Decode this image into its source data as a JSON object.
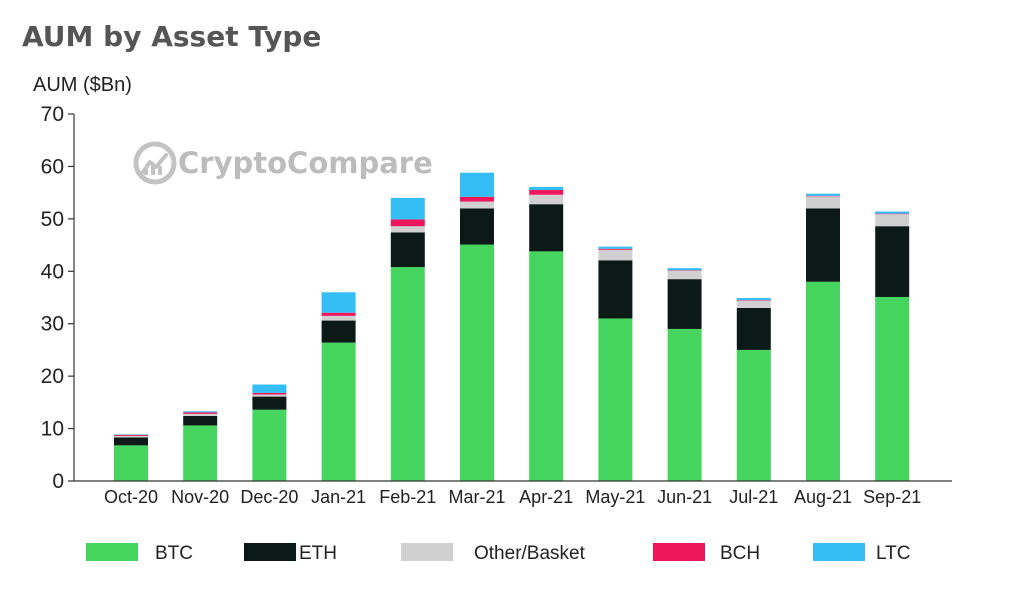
{
  "chart_data": {
    "type": "bar",
    "stacked": true,
    "title": "AUM by Asset Type",
    "xlabel": "",
    "ylabel": "AUM ($Bn)",
    "ylim": [
      0,
      70
    ],
    "yticks": [
      0,
      10,
      20,
      30,
      40,
      50,
      60,
      70
    ],
    "grid": false,
    "legend_position": "bottom",
    "watermark": "CryptoCompare",
    "categories": [
      "Oct-20",
      "Nov-20",
      "Dec-20",
      "Jan-21",
      "Feb-21",
      "Mar-21",
      "Apr-21",
      "May-21",
      "Jun-21",
      "Jul-21",
      "Aug-21",
      "Sep-21"
    ],
    "series": [
      {
        "name": "BTC",
        "color": "#45d45d",
        "values": [
          6.8,
          10.6,
          13.6,
          26.4,
          40.8,
          45.1,
          43.8,
          31.0,
          29.0,
          25.0,
          38.0,
          35.1
        ]
      },
      {
        "name": "ETH",
        "color": "#0c1a17",
        "values": [
          1.5,
          1.8,
          2.5,
          4.2,
          6.6,
          6.9,
          9.0,
          11.1,
          9.5,
          8.0,
          14.0,
          13.5
        ]
      },
      {
        "name": "Other/Basket",
        "color": "#d0d0d0",
        "values": [
          0.3,
          0.4,
          0.4,
          0.9,
          1.2,
          1.3,
          1.8,
          2.0,
          1.6,
          1.4,
          2.3,
          2.3
        ]
      },
      {
        "name": "BCH",
        "color": "#f0165c",
        "values": [
          0.2,
          0.3,
          0.3,
          0.6,
          1.3,
          0.9,
          0.9,
          0.2,
          0.1,
          0.1,
          0.1,
          0.1
        ]
      },
      {
        "name": "LTC",
        "color": "#35bdf5",
        "values": [
          0.1,
          0.2,
          1.6,
          3.9,
          4.1,
          4.6,
          0.6,
          0.4,
          0.4,
          0.4,
          0.4,
          0.4
        ]
      }
    ]
  }
}
